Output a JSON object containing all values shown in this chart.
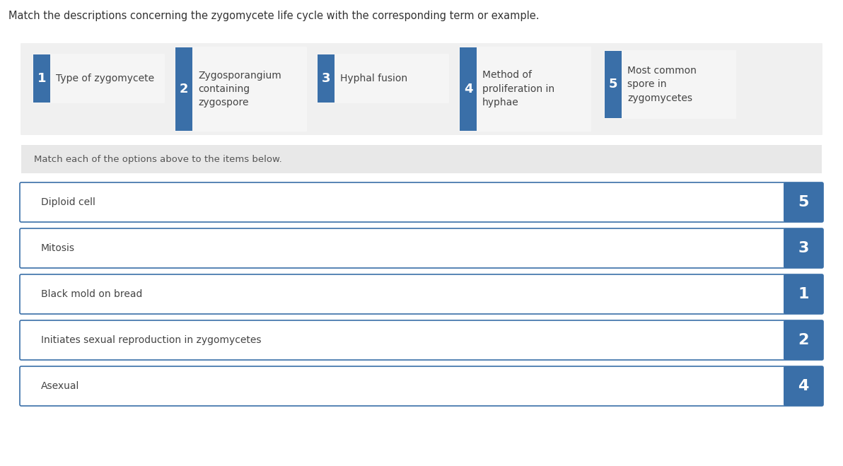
{
  "title": "Match the descriptions concerning the zygomycete life cycle with the corresponding term or example.",
  "top_items": [
    {
      "number": "1",
      "text": "Type of zygomycete"
    },
    {
      "number": "2",
      "text": "Zygosporangium\ncontaining\nzygospore"
    },
    {
      "number": "3",
      "text": "Hyphal fusion"
    },
    {
      "number": "4",
      "text": "Method of\nproliferation in\nhyphae"
    },
    {
      "number": "5",
      "text": "Most common\nspore in\nzygomycetes"
    }
  ],
  "instruction": "Match each of the options above to the items below.",
  "bottom_items": [
    {
      "text": "Diploid cell",
      "answer": "5"
    },
    {
      "text": "Mitosis",
      "answer": "3"
    },
    {
      "text": "Black mold on bread",
      "answer": "1"
    },
    {
      "text": "Initiates sexual reproduction in zygomycetes",
      "answer": "2"
    },
    {
      "text": "Asexual",
      "answer": "4"
    }
  ],
  "badge_color": "#3a6fa8",
  "top_panel_bg": "#f0f0f0",
  "instruction_bg": "#e8e8e8",
  "answer_box_border": "#3a6fa8",
  "answer_box_bg": "#ffffff",
  "background_color": "#ffffff",
  "title_fontsize": 10.5,
  "badge_fontsize": 13,
  "item_fontsize": 10,
  "instruction_fontsize": 9.5,
  "answer_fontsize": 10
}
